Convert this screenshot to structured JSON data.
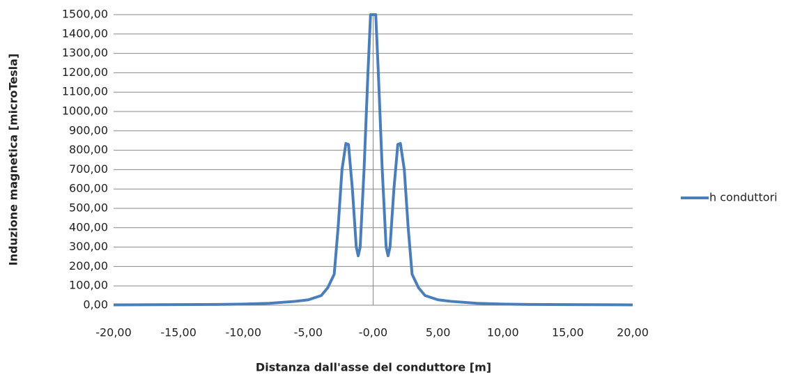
{
  "chart_data": {
    "type": "line",
    "y_label": "Induzione magnetica [microTesla]",
    "x_label": "Distanza dall'asse del conduttore [m]",
    "x": [
      -20,
      -15,
      -12,
      -10,
      -8,
      -6,
      -5,
      -4,
      -3.5,
      -3,
      -2.7,
      -2.4,
      -2.1,
      -1.9,
      -1.6,
      -1.3,
      -1.15,
      -1,
      -0.7,
      -0.4,
      -0.2,
      0.2,
      0.4,
      0.7,
      1,
      1.15,
      1.3,
      1.6,
      1.9,
      2.1,
      2.4,
      2.7,
      3,
      3.5,
      4,
      5,
      6,
      8,
      10,
      12,
      15,
      20
    ],
    "series": [
      {
        "name": "h conduttori",
        "color": "#4a7ebb",
        "values": [
          2,
          3,
          4,
          6,
          10,
          20,
          28,
          50,
          90,
          160,
          400,
          700,
          835,
          830,
          600,
          300,
          255,
          300,
          700,
          1200,
          1500,
          1500,
          1200,
          700,
          300,
          255,
          300,
          600,
          830,
          835,
          700,
          400,
          160,
          90,
          50,
          28,
          20,
          10,
          6,
          4,
          3,
          2
        ]
      }
    ],
    "xlim": [
      -20,
      20
    ],
    "xticks": [
      {
        "value": -20,
        "label": "-20,00"
      },
      {
        "value": -15,
        "label": "-15,00"
      },
      {
        "value": -10,
        "label": "-10,00"
      },
      {
        "value": -5,
        "label": "-5,00"
      },
      {
        "value": 0,
        "label": "-0,00"
      },
      {
        "value": 5,
        "label": "5,00"
      },
      {
        "value": 10,
        "label": "10,00"
      },
      {
        "value": 15,
        "label": "15,00"
      },
      {
        "value": 20,
        "label": "20,00"
      }
    ],
    "ylim": [
      0,
      1500
    ],
    "yticks": [
      {
        "value": 0,
        "label": "0,00"
      },
      {
        "value": 100,
        "label": "100,00"
      },
      {
        "value": 200,
        "label": "200,00"
      },
      {
        "value": 300,
        "label": "300,00"
      },
      {
        "value": 400,
        "label": "400,00"
      },
      {
        "value": 500,
        "label": "500,00"
      },
      {
        "value": 600,
        "label": "600,00"
      },
      {
        "value": 700,
        "label": "700,00"
      },
      {
        "value": 800,
        "label": "800,00"
      },
      {
        "value": 900,
        "label": "900,00"
      },
      {
        "value": 1000,
        "label": "1000,00"
      },
      {
        "value": 1100,
        "label": "1100,00"
      },
      {
        "value": 1200,
        "label": "1200,00"
      },
      {
        "value": 1300,
        "label": "1300,00"
      },
      {
        "value": 1400,
        "label": "1400,00"
      },
      {
        "value": 1500,
        "label": "1500,00"
      }
    ],
    "grid": true,
    "legend": "right"
  }
}
